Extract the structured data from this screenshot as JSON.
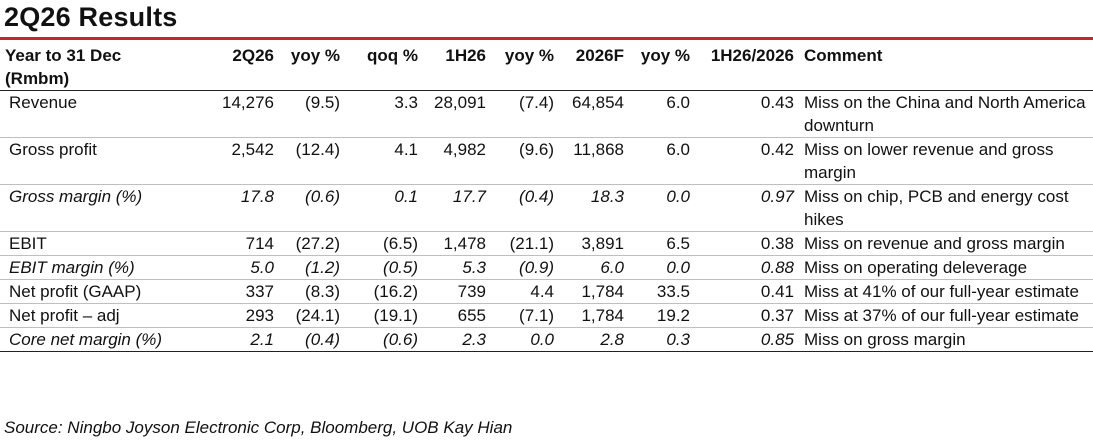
{
  "title": "2Q26 Results",
  "header": {
    "line1": "Year to 31 Dec",
    "line2": "(Rmbm)",
    "columns": [
      "2Q26",
      "yoy %",
      "qoq %",
      "1H26",
      "yoy %",
      "2026F",
      "yoy %",
      "1H26/2026",
      "Comment"
    ]
  },
  "rows": [
    {
      "label": "Revenue",
      "values": [
        "14,276",
        "(9.5)",
        "3.3",
        "28,091",
        "(7.4)",
        "64,854",
        "6.0",
        "0.43"
      ],
      "comment": "Miss on the China and North America downturn"
    },
    {
      "label": "Gross profit",
      "values": [
        "2,542",
        "(12.4)",
        "4.1",
        "4,982",
        "(9.6)",
        "11,868",
        "6.0",
        "0.42"
      ],
      "comment": "Miss on lower revenue and gross margin"
    },
    {
      "label": "Gross margin (%)",
      "values": [
        "17.8",
        "(0.6)",
        "0.1",
        "17.7",
        "(0.4)",
        "18.3",
        "0.0",
        "0.97"
      ],
      "comment": "Miss on chip, PCB and energy cost hikes"
    },
    {
      "label": "EBIT",
      "values": [
        "714",
        "(27.2)",
        "(6.5)",
        "1,478",
        "(21.1)",
        "3,891",
        "6.5",
        "0.38"
      ],
      "comment": "Miss on revenue and gross margin"
    },
    {
      "label": "EBIT margin (%)",
      "values": [
        "5.0",
        "(1.2)",
        "(0.5)",
        "5.3",
        "(0.9)",
        "6.0",
        "0.0",
        "0.88"
      ],
      "comment": "Miss on operating deleverage"
    },
    {
      "label": "Net profit (GAAP)",
      "values": [
        "337",
        "(8.3)",
        "(16.2)",
        "739",
        "4.4",
        "1,784",
        "33.5",
        "0.41"
      ],
      "comment": "Miss at 41% of our full-year estimate"
    },
    {
      "label": "Net profit – adj",
      "values": [
        "293",
        "(24.1)",
        "(19.1)",
        "655",
        "(7.1)",
        "1,784",
        "19.2",
        "0.37"
      ],
      "comment": "Miss at 37% of our full-year estimate"
    },
    {
      "label": "Core net margin (%)",
      "values": [
        "2.1",
        "(0.4)",
        "(0.6)",
        "2.3",
        "0.0",
        "2.8",
        "0.3",
        "0.85"
      ],
      "comment": "Miss on gross margin"
    }
  ],
  "source": "Source: Ningbo Joyson Electronic Corp, Bloomberg, UOB Kay Hian"
}
